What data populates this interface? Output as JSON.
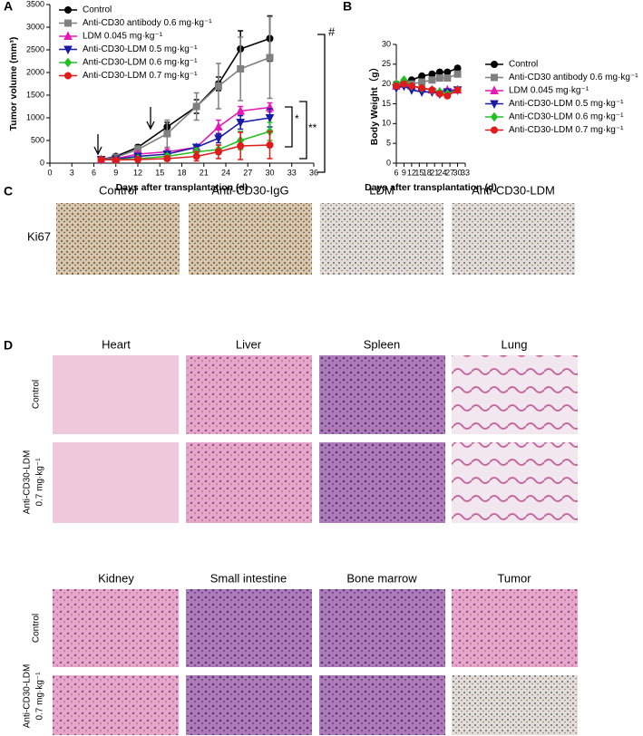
{
  "panel_labels": [
    "A",
    "B",
    "C",
    "D"
  ],
  "chart_data": [
    {
      "type": "line",
      "xlabel": "Days after transplantation (d)",
      "ylabel": "Tumor volume (mm³)",
      "x": [
        7,
        9,
        12,
        16,
        20,
        23,
        26,
        30
      ],
      "xlim": [
        0,
        36
      ],
      "xticks": [
        0,
        3,
        6,
        9,
        12,
        15,
        18,
        21,
        24,
        27,
        30,
        33,
        36
      ],
      "ylim": [
        0,
        3500
      ],
      "yticks": [
        0,
        500,
        1000,
        1500,
        2000,
        2500,
        3000,
        3500
      ],
      "legend": "upper left",
      "annotations": [
        "#",
        "*",
        "**"
      ],
      "series": [
        {
          "name": "Control",
          "color": "#000000",
          "marker": "circle",
          "values": [
            80,
            150,
            350,
            800,
            1250,
            1750,
            2520,
            2750
          ],
          "errors": [
            10,
            20,
            50,
            100,
            150,
            150,
            400,
            500
          ]
        },
        {
          "name": "Anti-CD30 antibody 0.6 mg·kg⁻¹",
          "color": "#808080",
          "marker": "square",
          "values": [
            80,
            130,
            300,
            650,
            1250,
            1700,
            2080,
            2330
          ],
          "errors": [
            10,
            30,
            80,
            300,
            300,
            500,
            700,
            900
          ]
        },
        {
          "name": "LDM 0.045 mg·kg⁻¹",
          "color": "#e619b4",
          "marker": "triangle-up",
          "values": [
            80,
            100,
            200,
            250,
            350,
            800,
            1150,
            1230
          ],
          "errors": [
            10,
            20,
            40,
            60,
            60,
            150,
            100,
            100
          ]
        },
        {
          "name": "Anti-CD30-LDM 0.5 mg·kg⁻¹",
          "color": "#1a1aa8",
          "marker": "triangle-down",
          "values": [
            80,
            90,
            150,
            200,
            350,
            550,
            900,
            1000
          ],
          "errors": [
            10,
            20,
            30,
            50,
            60,
            100,
            150,
            200
          ]
        },
        {
          "name": "Anti-CD30-LDM 0.6 mg·kg⁻¹",
          "color": "#22c022",
          "marker": "diamond",
          "values": [
            80,
            80,
            100,
            150,
            250,
            300,
            500,
            700
          ],
          "errors": [
            10,
            10,
            20,
            50,
            80,
            100,
            200,
            200
          ]
        },
        {
          "name": "Anti-CD30-LDM 0.7 mg·kg⁻¹",
          "color": "#e01b1b",
          "marker": "circle",
          "values": [
            80,
            70,
            80,
            100,
            150,
            250,
            380,
            400
          ],
          "errors": [
            10,
            10,
            20,
            50,
            100,
            150,
            300,
            300
          ]
        }
      ]
    },
    {
      "type": "line",
      "xlabel": "Days after transplantation (d)",
      "ylabel": "Body Weight（g）",
      "x": [
        6,
        9,
        12,
        16,
        20,
        23,
        26,
        30
      ],
      "xlim": [
        6,
        33
      ],
      "xticks": [
        6,
        9,
        12,
        15,
        18,
        21,
        24,
        27,
        30,
        33
      ],
      "ylim": [
        0,
        30
      ],
      "yticks": [
        0,
        5,
        10,
        15,
        20,
        25,
        30
      ],
      "legend": "right",
      "series": [
        {
          "name": "Control",
          "color": "#000000",
          "marker": "circle",
          "values": [
            20,
            20.5,
            21,
            22,
            22.5,
            23,
            23,
            24
          ]
        },
        {
          "name": "Anti-CD30 antibody 0.6 mg·kg⁻¹",
          "color": "#808080",
          "marker": "square",
          "values": [
            19.5,
            20,
            20,
            20.5,
            21,
            21.5,
            21.5,
            22.5
          ]
        },
        {
          "name": "LDM 0.045 mg·kg⁻¹",
          "color": "#e619b4",
          "marker": "triangle-up",
          "values": [
            19.5,
            20,
            19.5,
            19,
            18.5,
            18,
            18.5,
            18.5
          ]
        },
        {
          "name": "Anti-CD30-LDM 0.5 mg·kg⁻¹",
          "color": "#1a1aa8",
          "marker": "triangle-down",
          "values": [
            19,
            19.5,
            18.5,
            18,
            18,
            17.5,
            18,
            18.5
          ]
        },
        {
          "name": "Anti-CD30-LDM 0.6 mg·kg⁻¹",
          "color": "#22c022",
          "marker": "diamond",
          "values": [
            20,
            21,
            19.5,
            19,
            18.5,
            18,
            17.5,
            18.5
          ]
        },
        {
          "name": "Anti-CD30-LDM 0.7 mg·kg⁻¹",
          "color": "#e01b1b",
          "marker": "circle",
          "values": [
            19.5,
            20,
            19.5,
            19,
            18.5,
            17.5,
            17,
            18.5
          ]
        }
      ]
    }
  ],
  "ki67": {
    "row_label": "Ki67",
    "columns": [
      "Control",
      "Anti-CD30-IgG",
      "LDM",
      "Anti-CD30-LDM"
    ]
  },
  "histology": {
    "control_label": "Control",
    "treated_label": [
      "Anti-CD30-LDM",
      "0.7 mg·kg⁻¹"
    ],
    "organs": [
      "Heart",
      "Liver",
      "Spleen",
      "Lung",
      "Kidney",
      "Small intestine",
      "Bone marrow",
      "Tumor"
    ]
  }
}
